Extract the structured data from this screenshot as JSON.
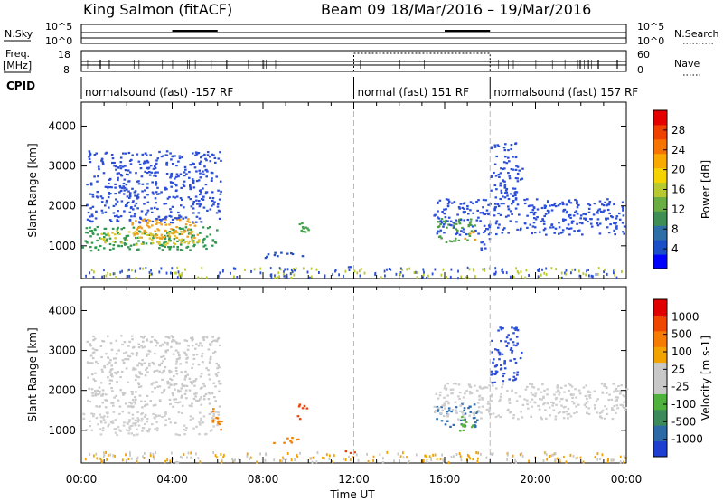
{
  "header": {
    "title": "King Salmon (fitACF)",
    "beam": "Beam 09",
    "dates": "18/Mar/2016 – 19/Mar/2016"
  },
  "strips": {
    "nsky_label": "N.Sky",
    "nsky_ticks": [
      "10^5",
      "10^0"
    ],
    "nsearch_label": "N.Search",
    "nsearch_ticks": [
      "10^5",
      "10^0"
    ],
    "freq_label_1": "Freq.",
    "freq_label_2": "[MHz]",
    "freq_ticks": [
      "18",
      "8"
    ],
    "nave_label": "Nave",
    "nave_ticks": [
      "60",
      "0"
    ],
    "cpid_label": "CPID",
    "cpid_segments": [
      {
        "label": "normalsound (fast) -157 RF",
        "start_hour": 0,
        "end_hour": 12
      },
      {
        "label": "normal (fast) 151 RF",
        "start_hour": 12,
        "end_hour": 18
      },
      {
        "label": "normalsound (fast) 157 RF",
        "start_hour": 18,
        "end_hour": 24
      }
    ]
  },
  "chart_data": [
    {
      "type": "heatmap",
      "name": "power",
      "ylabel": "Slant Range [km]",
      "y_ticks": [
        1000,
        2000,
        3000,
        4000
      ],
      "ylim": [
        180,
        4600
      ],
      "x_ticks": [
        "00:00",
        "04:00",
        "08:00",
        "12:00",
        "16:00",
        "20:00",
        "00:00"
      ],
      "xlim_hours": [
        0,
        24
      ],
      "colorbar": {
        "label": "Power [dB]",
        "ticks": [
          "4",
          "8",
          "12",
          "16",
          "20",
          "24",
          "28"
        ],
        "colors": [
          "#0000ff",
          "#1a4fc8",
          "#2f6fa8",
          "#3f8e56",
          "#69ad43",
          "#b8c92f",
          "#f4d300",
          "#f9aa00",
          "#f77400",
          "#f04000",
          "#e40000"
        ]
      },
      "regions": [
        {
          "t0": 0.0,
          "t1": 6.0,
          "r0": 900,
          "r1": 1500,
          "color": "#2f9a4e"
        },
        {
          "t0": 0.8,
          "t1": 5.2,
          "r0": 1050,
          "r1": 1400,
          "color": "#d9c62c"
        },
        {
          "t0": 2.2,
          "t1": 5.4,
          "r0": 1200,
          "r1": 1700,
          "color": "#f0a020"
        },
        {
          "t0": 0.2,
          "t1": 6.1,
          "r0": 1600,
          "r1": 3400,
          "color": "#2d4fd6"
        },
        {
          "t0": 8.0,
          "t1": 9.8,
          "r0": 700,
          "r1": 850,
          "color": "#274fbf"
        },
        {
          "t0": 9.4,
          "t1": 10.0,
          "r0": 1300,
          "r1": 1700,
          "color": "#45a34b"
        },
        {
          "t0": 11.4,
          "t1": 12.0,
          "r0": 420,
          "r1": 500,
          "color": "#2d4fd6"
        },
        {
          "t0": 15.6,
          "t1": 17.4,
          "r0": 1100,
          "r1": 1700,
          "color": "#4d9e44"
        },
        {
          "t0": 16.6,
          "t1": 17.3,
          "r0": 1150,
          "r1": 1400,
          "color": "#e89a20"
        },
        {
          "t0": 15.5,
          "t1": 24.0,
          "r0": 1300,
          "r1": 2200,
          "color": "#2c4fd9"
        },
        {
          "t0": 18.0,
          "t1": 19.4,
          "r0": 2200,
          "r1": 3600,
          "color": "#2c4fd9"
        },
        {
          "t0": 17.5,
          "t1": 18.2,
          "r0": 900,
          "r1": 1200,
          "color": "#2c4fd9"
        }
      ]
    },
    {
      "type": "heatmap",
      "name": "velocity",
      "ylabel": "Slant Range [km]",
      "y_ticks": [
        1000,
        2000,
        3000,
        4000
      ],
      "ylim": [
        180,
        4600
      ],
      "x_ticks": [
        "00:00",
        "04:00",
        "08:00",
        "12:00",
        "16:00",
        "20:00",
        "00:00"
      ],
      "xlim_hours": [
        0,
        24
      ],
      "xlabel": "Time UT",
      "colorbar": {
        "label": "Velocity [m s-1]",
        "ticks": [
          "1000",
          "500",
          "100",
          "25",
          "-25",
          "-100",
          "-500",
          "-1000"
        ],
        "colors": [
          "#1e3fd0",
          "#2b6aa6",
          "#3a8a5a",
          "#4fb23c",
          "#c8c8c8",
          "#c8c8c8",
          "#f2a300",
          "#f57c00",
          "#ef4600",
          "#e10000"
        ]
      },
      "regions": [
        {
          "t0": 0.0,
          "t1": 6.0,
          "r0": 900,
          "r1": 1500,
          "color": "#cfcfcf"
        },
        {
          "t0": 0.2,
          "t1": 6.1,
          "r0": 1600,
          "r1": 3400,
          "color": "#c9c9c9"
        },
        {
          "t0": 5.6,
          "t1": 6.2,
          "r0": 1000,
          "r1": 1600,
          "color": "#f07e00"
        },
        {
          "t0": 8.0,
          "t1": 9.8,
          "r0": 700,
          "r1": 850,
          "color": "#f07e00"
        },
        {
          "t0": 9.4,
          "t1": 10.0,
          "r0": 1300,
          "r1": 1700,
          "color": "#e8440a"
        },
        {
          "t0": 11.4,
          "t1": 12.0,
          "r0": 420,
          "r1": 500,
          "color": "#e8440a"
        },
        {
          "t0": 15.6,
          "t1": 17.4,
          "r0": 1100,
          "r1": 1700,
          "color": "#2f6fb0"
        },
        {
          "t0": 16.6,
          "t1": 17.3,
          "r0": 1000,
          "r1": 1400,
          "color": "#5ab83c"
        },
        {
          "t0": 15.5,
          "t1": 24.0,
          "r0": 1300,
          "r1": 2200,
          "color": "#cdcdcd"
        },
        {
          "t0": 18.0,
          "t1": 19.4,
          "r0": 2200,
          "r1": 3600,
          "color": "#2c4fd9"
        }
      ]
    }
  ]
}
